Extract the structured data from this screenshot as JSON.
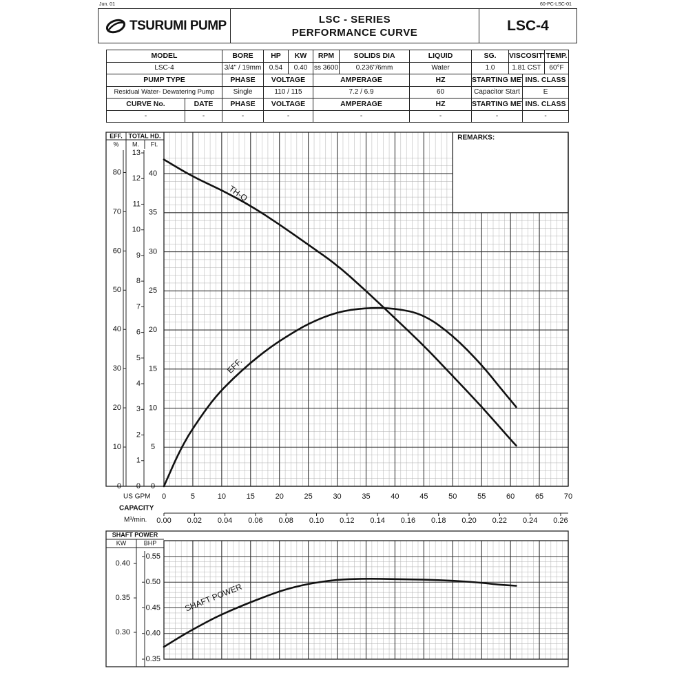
{
  "corner_left": "Jun. 01",
  "corner_right": "60-PC-LSC-01",
  "header": {
    "brand": "TSURUMI PUMP",
    "title_line1": "LSC - SERIES",
    "title_line2": "PERFORMANCE CURVE",
    "model_code": "LSC-4"
  },
  "spec": {
    "row1_headers": [
      "MODEL",
      "BORE",
      "HP",
      "KW",
      "RPM",
      "SOLIDS DIA",
      "LIQUID",
      "SG.",
      "VISCOSITY",
      "TEMP."
    ],
    "row1_values": [
      "LSC-4",
      "3/4\" / 19mm",
      "0.54",
      "0.40",
      "ss 3600",
      "0.236\"/6mm",
      "Water",
      "1.0",
      "1.81 CST",
      "60°F"
    ],
    "row2_headers": [
      "PUMP TYPE",
      "PHASE",
      "VOLTAGE",
      "AMPERAGE",
      "HZ",
      "STARTING METHOD",
      "INS. CLASS"
    ],
    "row2_values": [
      "Residual Water- Dewatering Pump",
      "Single",
      "110 / 115",
      "7.2 / 6.9",
      "60",
      "Capacitor Start",
      "E"
    ],
    "row3_headers": [
      "CURVE No.",
      "DATE",
      "PHASE",
      "VOLTAGE",
      "AMPERAGE",
      "HZ",
      "STARTING METHOD",
      "INS. CLASS"
    ],
    "row3_values": [
      "-",
      "-",
      "-",
      "-",
      "-",
      "-",
      "-",
      "-"
    ]
  },
  "remarks_label": "REMARKS:",
  "chart_data": [
    {
      "type": "line",
      "panel": "performance",
      "x_label": "US GPM",
      "xlim": [
        0,
        70
      ],
      "x_ticks": [
        0,
        5,
        10,
        15,
        20,
        25,
        30,
        35,
        40,
        45,
        50,
        55,
        60,
        65,
        70
      ],
      "capacity_label": "CAPACITY",
      "m3_label": "M³/min.",
      "m3_ticks": [
        "0.00",
        "0.02",
        "0.04",
        "0.06",
        "0.08",
        "0.10",
        "0.12",
        "0.14",
        "0.16",
        "0.18",
        "0.20",
        "0.22",
        "0.24",
        "0.26"
      ],
      "eff_axis": {
        "header": "EFF.",
        "unit": "%",
        "ticks": [
          0,
          10,
          20,
          30,
          40,
          50,
          60,
          70,
          80
        ],
        "max": 85
      },
      "head_header": "TOTAL HD.",
      "head_m_axis": {
        "unit": "M.",
        "ticks": [
          0,
          1,
          2,
          3,
          4,
          5,
          6,
          7,
          8,
          9,
          10,
          11,
          12,
          13
        ]
      },
      "head_ft_axis": {
        "unit": "Ft.",
        "ticks": [
          0,
          5,
          10,
          15,
          20,
          25,
          30,
          35,
          40
        ],
        "max": 42.65
      },
      "series": [
        {
          "name": "TH-Q",
          "axis": "ft",
          "x": [
            0,
            5,
            10,
            15,
            20,
            25,
            30,
            35,
            40,
            45,
            50,
            55,
            60,
            61
          ],
          "y": [
            41.8,
            39.6,
            37.9,
            35.9,
            33.5,
            30.9,
            28.3,
            25.0,
            21.5,
            18.0,
            14.1,
            10.2,
            6.0,
            5.2
          ]
        },
        {
          "name": "EFF.",
          "axis": "eff",
          "x": [
            0,
            3,
            6,
            9,
            12,
            15,
            18,
            21,
            25,
            30,
            35,
            40,
            45,
            50,
            55,
            58,
            61
          ],
          "y": [
            0,
            10,
            17,
            23,
            27.5,
            31.5,
            35,
            38,
            41.5,
            44.5,
            45.5,
            45.4,
            43.8,
            38.5,
            31,
            25.5,
            20.2
          ]
        }
      ]
    },
    {
      "type": "line",
      "panel": "shaft_power",
      "title": "SHAFT POWER",
      "kw_axis": {
        "unit": "KW",
        "ticks": [
          "0.30",
          "0.35",
          "0.40"
        ]
      },
      "bhp_axis": {
        "unit": "BHP",
        "ticks": [
          "0.35",
          "0.40",
          "0.45",
          "0.50",
          "0.55"
        ],
        "min": 0.35,
        "max": 0.55
      },
      "xlim": [
        0,
        70
      ],
      "series": [
        {
          "name": "SHAFT POWER",
          "axis": "bhp",
          "x": [
            0,
            3,
            6,
            9,
            12,
            15,
            18,
            21,
            25,
            30,
            35,
            40,
            45,
            50,
            55,
            58,
            61
          ],
          "y": [
            0.374,
            0.395,
            0.414,
            0.432,
            0.447,
            0.461,
            0.474,
            0.486,
            0.497,
            0.505,
            0.507,
            0.506,
            0.505,
            0.503,
            0.499,
            0.495,
            0.493
          ]
        }
      ]
    }
  ]
}
